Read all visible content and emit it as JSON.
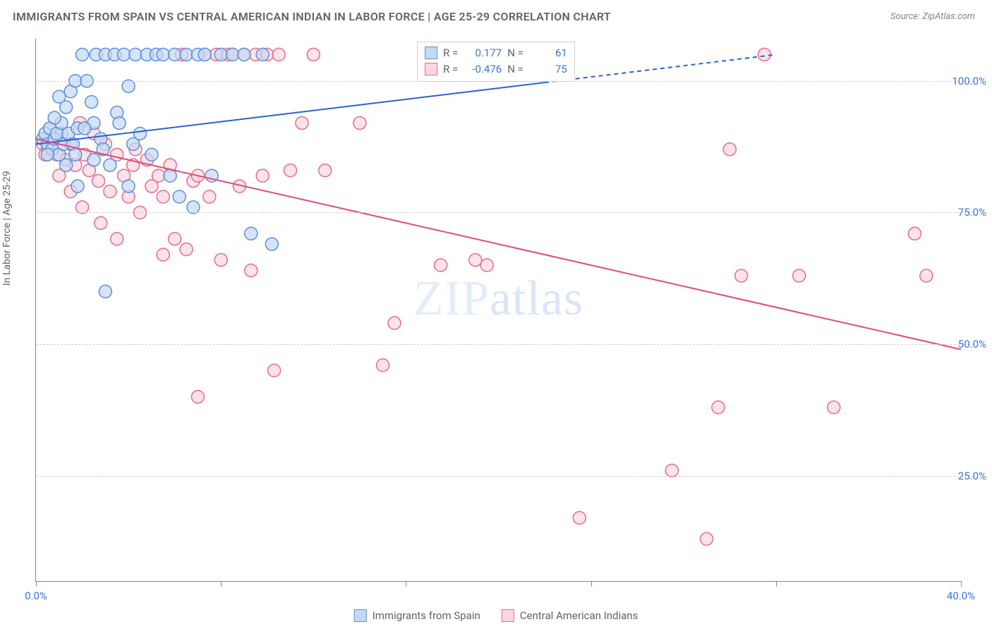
{
  "title": "IMMIGRANTS FROM SPAIN VS CENTRAL AMERICAN INDIAN IN LABOR FORCE | AGE 25-29 CORRELATION CHART",
  "source": "Source: ZipAtlas.com",
  "y_axis_label": "In Labor Force | Age 25-29",
  "watermark": "ZIPatlas",
  "chart": {
    "type": "scatter",
    "x_range": [
      0,
      40
    ],
    "y_range": [
      5,
      108
    ],
    "y_ticks": [
      25,
      50,
      75,
      100
    ],
    "y_tick_labels": [
      "25.0%",
      "50.0%",
      "75.0%",
      "100.0%"
    ],
    "x_ticks": [
      0,
      8,
      16,
      24,
      32,
      40
    ],
    "x_tick_label_left": "0.0%",
    "x_tick_label_right": "40.0%",
    "grid_color": "#d0d0d0",
    "axis_color": "#888888",
    "background": "#ffffff",
    "marker_radius": 9,
    "marker_stroke_width": 1.5,
    "line_width": 2
  },
  "series": [
    {
      "key": "spain",
      "label": "Immigrants from Spain",
      "color_fill": "#c5d9f3",
      "color_stroke": "#5b90dc",
      "line_color": "#2b62c9",
      "R": "0.177",
      "N": "61",
      "regression": {
        "x1": 0,
        "y1": 88,
        "x2": 32,
        "y2": 105,
        "dash_after_x": 22
      },
      "points": [
        [
          0.3,
          89
        ],
        [
          0.4,
          90
        ],
        [
          0.5,
          88
        ],
        [
          0.6,
          91
        ],
        [
          0.7,
          87
        ],
        [
          0.8,
          89
        ],
        [
          0.9,
          90
        ],
        [
          1.0,
          86
        ],
        [
          1.1,
          92
        ],
        [
          1.2,
          88
        ],
        [
          1.3,
          95
        ],
        [
          1.4,
          90
        ],
        [
          1.5,
          98
        ],
        [
          1.6,
          88
        ],
        [
          1.7,
          100
        ],
        [
          1.8,
          91
        ],
        [
          2.0,
          105
        ],
        [
          2.2,
          100
        ],
        [
          2.4,
          96
        ],
        [
          2.5,
          92
        ],
        [
          2.6,
          105
        ],
        [
          2.8,
          89
        ],
        [
          3.0,
          105
        ],
        [
          3.2,
          84
        ],
        [
          3.4,
          105
        ],
        [
          3.5,
          94
        ],
        [
          3.8,
          105
        ],
        [
          4.0,
          99
        ],
        [
          4.3,
          105
        ],
        [
          4.5,
          90
        ],
        [
          4.8,
          105
        ],
        [
          5.0,
          86
        ],
        [
          5.2,
          105
        ],
        [
          5.5,
          105
        ],
        [
          5.8,
          82
        ],
        [
          6.0,
          105
        ],
        [
          6.2,
          78
        ],
        [
          6.5,
          105
        ],
        [
          6.8,
          76
        ],
        [
          7.0,
          105
        ],
        [
          7.3,
          105
        ],
        [
          7.6,
          82
        ],
        [
          8.0,
          105
        ],
        [
          8.5,
          105
        ],
        [
          9.0,
          105
        ],
        [
          9.3,
          71
        ],
        [
          9.8,
          105
        ],
        [
          10.2,
          69
        ],
        [
          3.0,
          60
        ],
        [
          1.8,
          80
        ],
        [
          2.5,
          85
        ],
        [
          4.0,
          80
        ],
        [
          0.5,
          86
        ],
        [
          0.8,
          93
        ],
        [
          1.0,
          97
        ],
        [
          1.3,
          84
        ],
        [
          1.7,
          86
        ],
        [
          2.1,
          91
        ],
        [
          2.9,
          87
        ],
        [
          3.6,
          92
        ],
        [
          4.2,
          88
        ]
      ]
    },
    {
      "key": "cai",
      "label": "Central American Indians",
      "color_fill": "#fbd7e0",
      "color_stroke": "#e66a8f",
      "line_color": "#e14b78",
      "R": "-0.476",
      "N": "75",
      "regression": {
        "x1": 0,
        "y1": 89,
        "x2": 40,
        "y2": 49
      },
      "points": [
        [
          0.3,
          88
        ],
        [
          0.5,
          87
        ],
        [
          0.7,
          89
        ],
        [
          0.9,
          86
        ],
        [
          1.1,
          90
        ],
        [
          1.3,
          85
        ],
        [
          1.5,
          88
        ],
        [
          1.7,
          84
        ],
        [
          1.9,
          92
        ],
        [
          2.1,
          86
        ],
        [
          2.3,
          83
        ],
        [
          2.5,
          90
        ],
        [
          2.7,
          81
        ],
        [
          3.0,
          88
        ],
        [
          3.2,
          79
        ],
        [
          3.5,
          86
        ],
        [
          3.8,
          82
        ],
        [
          4.0,
          78
        ],
        [
          4.3,
          87
        ],
        [
          4.5,
          75
        ],
        [
          4.8,
          85
        ],
        [
          5.0,
          80
        ],
        [
          5.3,
          82
        ],
        [
          5.5,
          78
        ],
        [
          5.8,
          84
        ],
        [
          6.0,
          70
        ],
        [
          6.3,
          105
        ],
        [
          6.5,
          68
        ],
        [
          6.8,
          81
        ],
        [
          7.0,
          82
        ],
        [
          7.3,
          105
        ],
        [
          7.5,
          78
        ],
        [
          7.8,
          105
        ],
        [
          8.0,
          66
        ],
        [
          8.3,
          105
        ],
        [
          8.5,
          105
        ],
        [
          8.8,
          80
        ],
        [
          9.0,
          105
        ],
        [
          9.3,
          64
        ],
        [
          9.5,
          105
        ],
        [
          9.8,
          82
        ],
        [
          10.0,
          105
        ],
        [
          10.3,
          45
        ],
        [
          10.5,
          105
        ],
        [
          11.0,
          83
        ],
        [
          11.5,
          92
        ],
        [
          12.0,
          105
        ],
        [
          12.5,
          83
        ],
        [
          7.0,
          40
        ],
        [
          5.5,
          67
        ],
        [
          14.0,
          92
        ],
        [
          15.0,
          46
        ],
        [
          15.5,
          54
        ],
        [
          17.5,
          65
        ],
        [
          19.0,
          66
        ],
        [
          19.5,
          65
        ],
        [
          23.5,
          17
        ],
        [
          27.5,
          26
        ],
        [
          29.0,
          13
        ],
        [
          29.5,
          38
        ],
        [
          30.5,
          63
        ],
        [
          30.0,
          87
        ],
        [
          31.5,
          105
        ],
        [
          33.0,
          63
        ],
        [
          34.5,
          38
        ],
        [
          38.0,
          71
        ],
        [
          38.5,
          63
        ],
        [
          1.0,
          82
        ],
        [
          1.5,
          79
        ],
        [
          2.0,
          76
        ],
        [
          2.8,
          73
        ],
        [
          3.5,
          70
        ],
        [
          4.2,
          84
        ],
        [
          0.6,
          91
        ],
        [
          0.4,
          86
        ]
      ]
    }
  ],
  "legend_top": {
    "R_label": "R =",
    "N_label": "N ="
  }
}
